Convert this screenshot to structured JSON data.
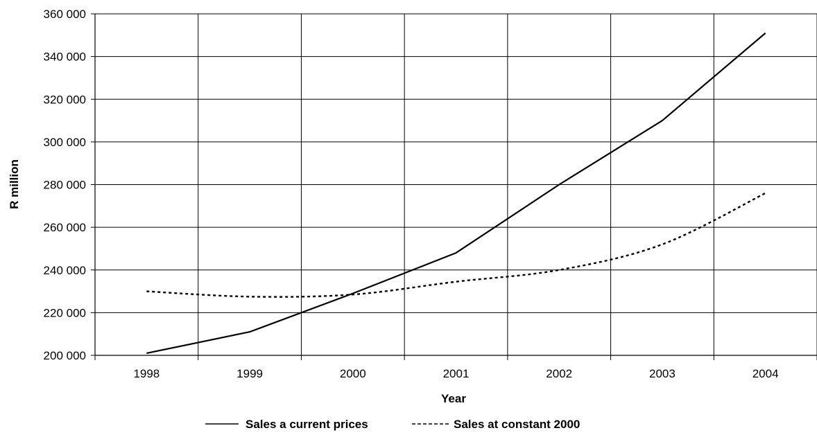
{
  "chart_data": {
    "type": "line",
    "title": "",
    "xlabel": "Year",
    "ylabel": "R million",
    "categories": [
      "1998",
      "1999",
      "2000",
      "2001",
      "2002",
      "2003",
      "2004"
    ],
    "ylim": [
      200000,
      360000
    ],
    "yticks": [
      200000,
      220000,
      240000,
      260000,
      280000,
      300000,
      320000,
      340000,
      360000
    ],
    "ytick_labels": [
      "200 000",
      "220 000",
      "240 000",
      "260 000",
      "280 000",
      "300 000",
      "320 000",
      "340 000",
      "360 000"
    ],
    "grid": true,
    "legend_position": "bottom",
    "series": [
      {
        "name": "Sales a current prices",
        "line_style": "solid",
        "color": "#000000",
        "values": [
          201000,
          211000,
          229000,
          248000,
          280000,
          310000,
          351000
        ]
      },
      {
        "name": "Sales at constant 2000",
        "line_style": "dotted",
        "color": "#000000",
        "values": [
          230000,
          227500,
          228500,
          234500,
          240000,
          252000,
          276000
        ]
      }
    ],
    "legend": {
      "entries": [
        {
          "marker": "———",
          "label": "Sales a current prices"
        },
        {
          "marker": "-------",
          "label": "Sales at constant 2000"
        }
      ]
    }
  }
}
